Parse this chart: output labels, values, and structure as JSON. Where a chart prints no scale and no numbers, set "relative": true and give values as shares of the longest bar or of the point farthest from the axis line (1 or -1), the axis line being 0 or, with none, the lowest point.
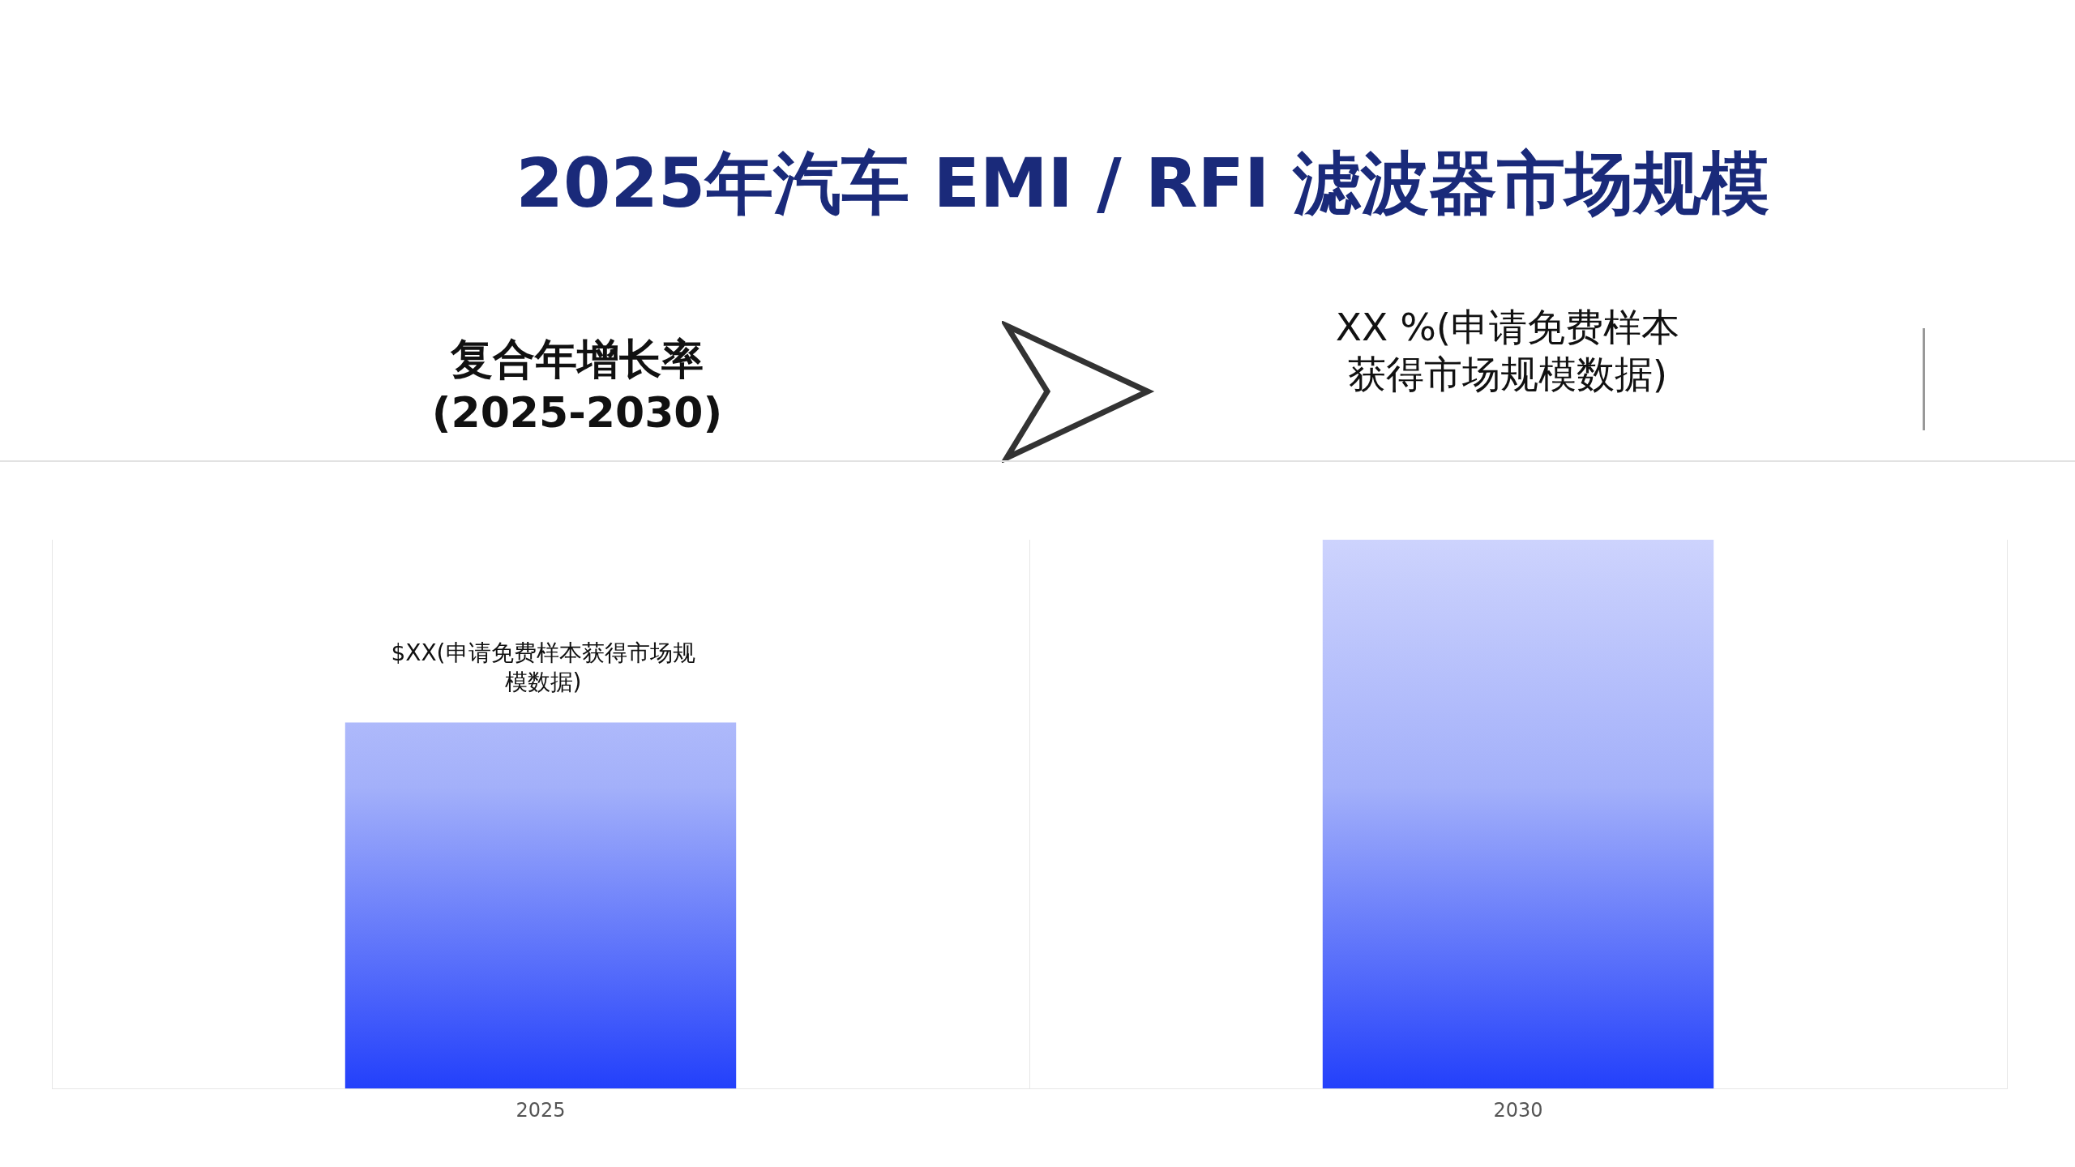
{
  "chart_data": {
    "type": "bar",
    "title": "2025年汽车 EMI / RFI 滤波器市场规模",
    "categories": [
      "2025",
      "2030"
    ],
    "values": [
      0.667,
      1
    ],
    "color": "#2340fb",
    "relative": true,
    "grid": "x",
    "annotations": [
      "复合年增长率 (2025-2030)",
      "XX %(申请免费样本获得市场规模数据)",
      "$XX(申请免费样本获得市场规模数据)"
    ]
  }
}
